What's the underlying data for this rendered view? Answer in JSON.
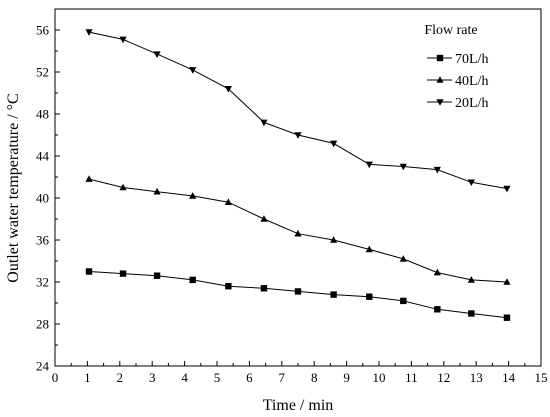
{
  "chart_data": {
    "type": "line",
    "xlabel": "Time / min",
    "ylabel": "Outlet water temperature / °C",
    "xlim": [
      0,
      15
    ],
    "ylim": [
      24,
      58
    ],
    "x_ticks": [
      0,
      1,
      2,
      3,
      4,
      5,
      6,
      7,
      8,
      9,
      10,
      11,
      12,
      13,
      14,
      15
    ],
    "y_ticks": [
      24,
      28,
      32,
      36,
      40,
      44,
      48,
      52,
      56
    ],
    "grid": false,
    "legend": {
      "title": "Flow rate",
      "placement": "top-right"
    },
    "x": [
      1.05,
      2.1,
      3.15,
      4.25,
      5.35,
      6.45,
      7.5,
      8.6,
      9.7,
      10.75,
      11.8,
      12.85,
      13.95
    ],
    "series": [
      {
        "name": "70L/h",
        "marker": "square",
        "values": [
          33.0,
          32.8,
          32.6,
          32.2,
          31.6,
          31.4,
          31.1,
          30.8,
          30.6,
          30.2,
          29.4,
          29.0,
          28.6
        ]
      },
      {
        "name": "40L/h",
        "marker": "triangle-up",
        "values": [
          41.8,
          41.0,
          40.6,
          40.2,
          39.6,
          38.0,
          36.6,
          36.0,
          35.1,
          34.2,
          32.9,
          32.2,
          32.0
        ]
      },
      {
        "name": "20L/h",
        "marker": "triangle-down",
        "values": [
          55.8,
          55.1,
          53.7,
          52.2,
          50.4,
          47.2,
          46.0,
          45.2,
          43.2,
          43.0,
          42.7,
          41.5,
          40.9
        ]
      }
    ]
  }
}
